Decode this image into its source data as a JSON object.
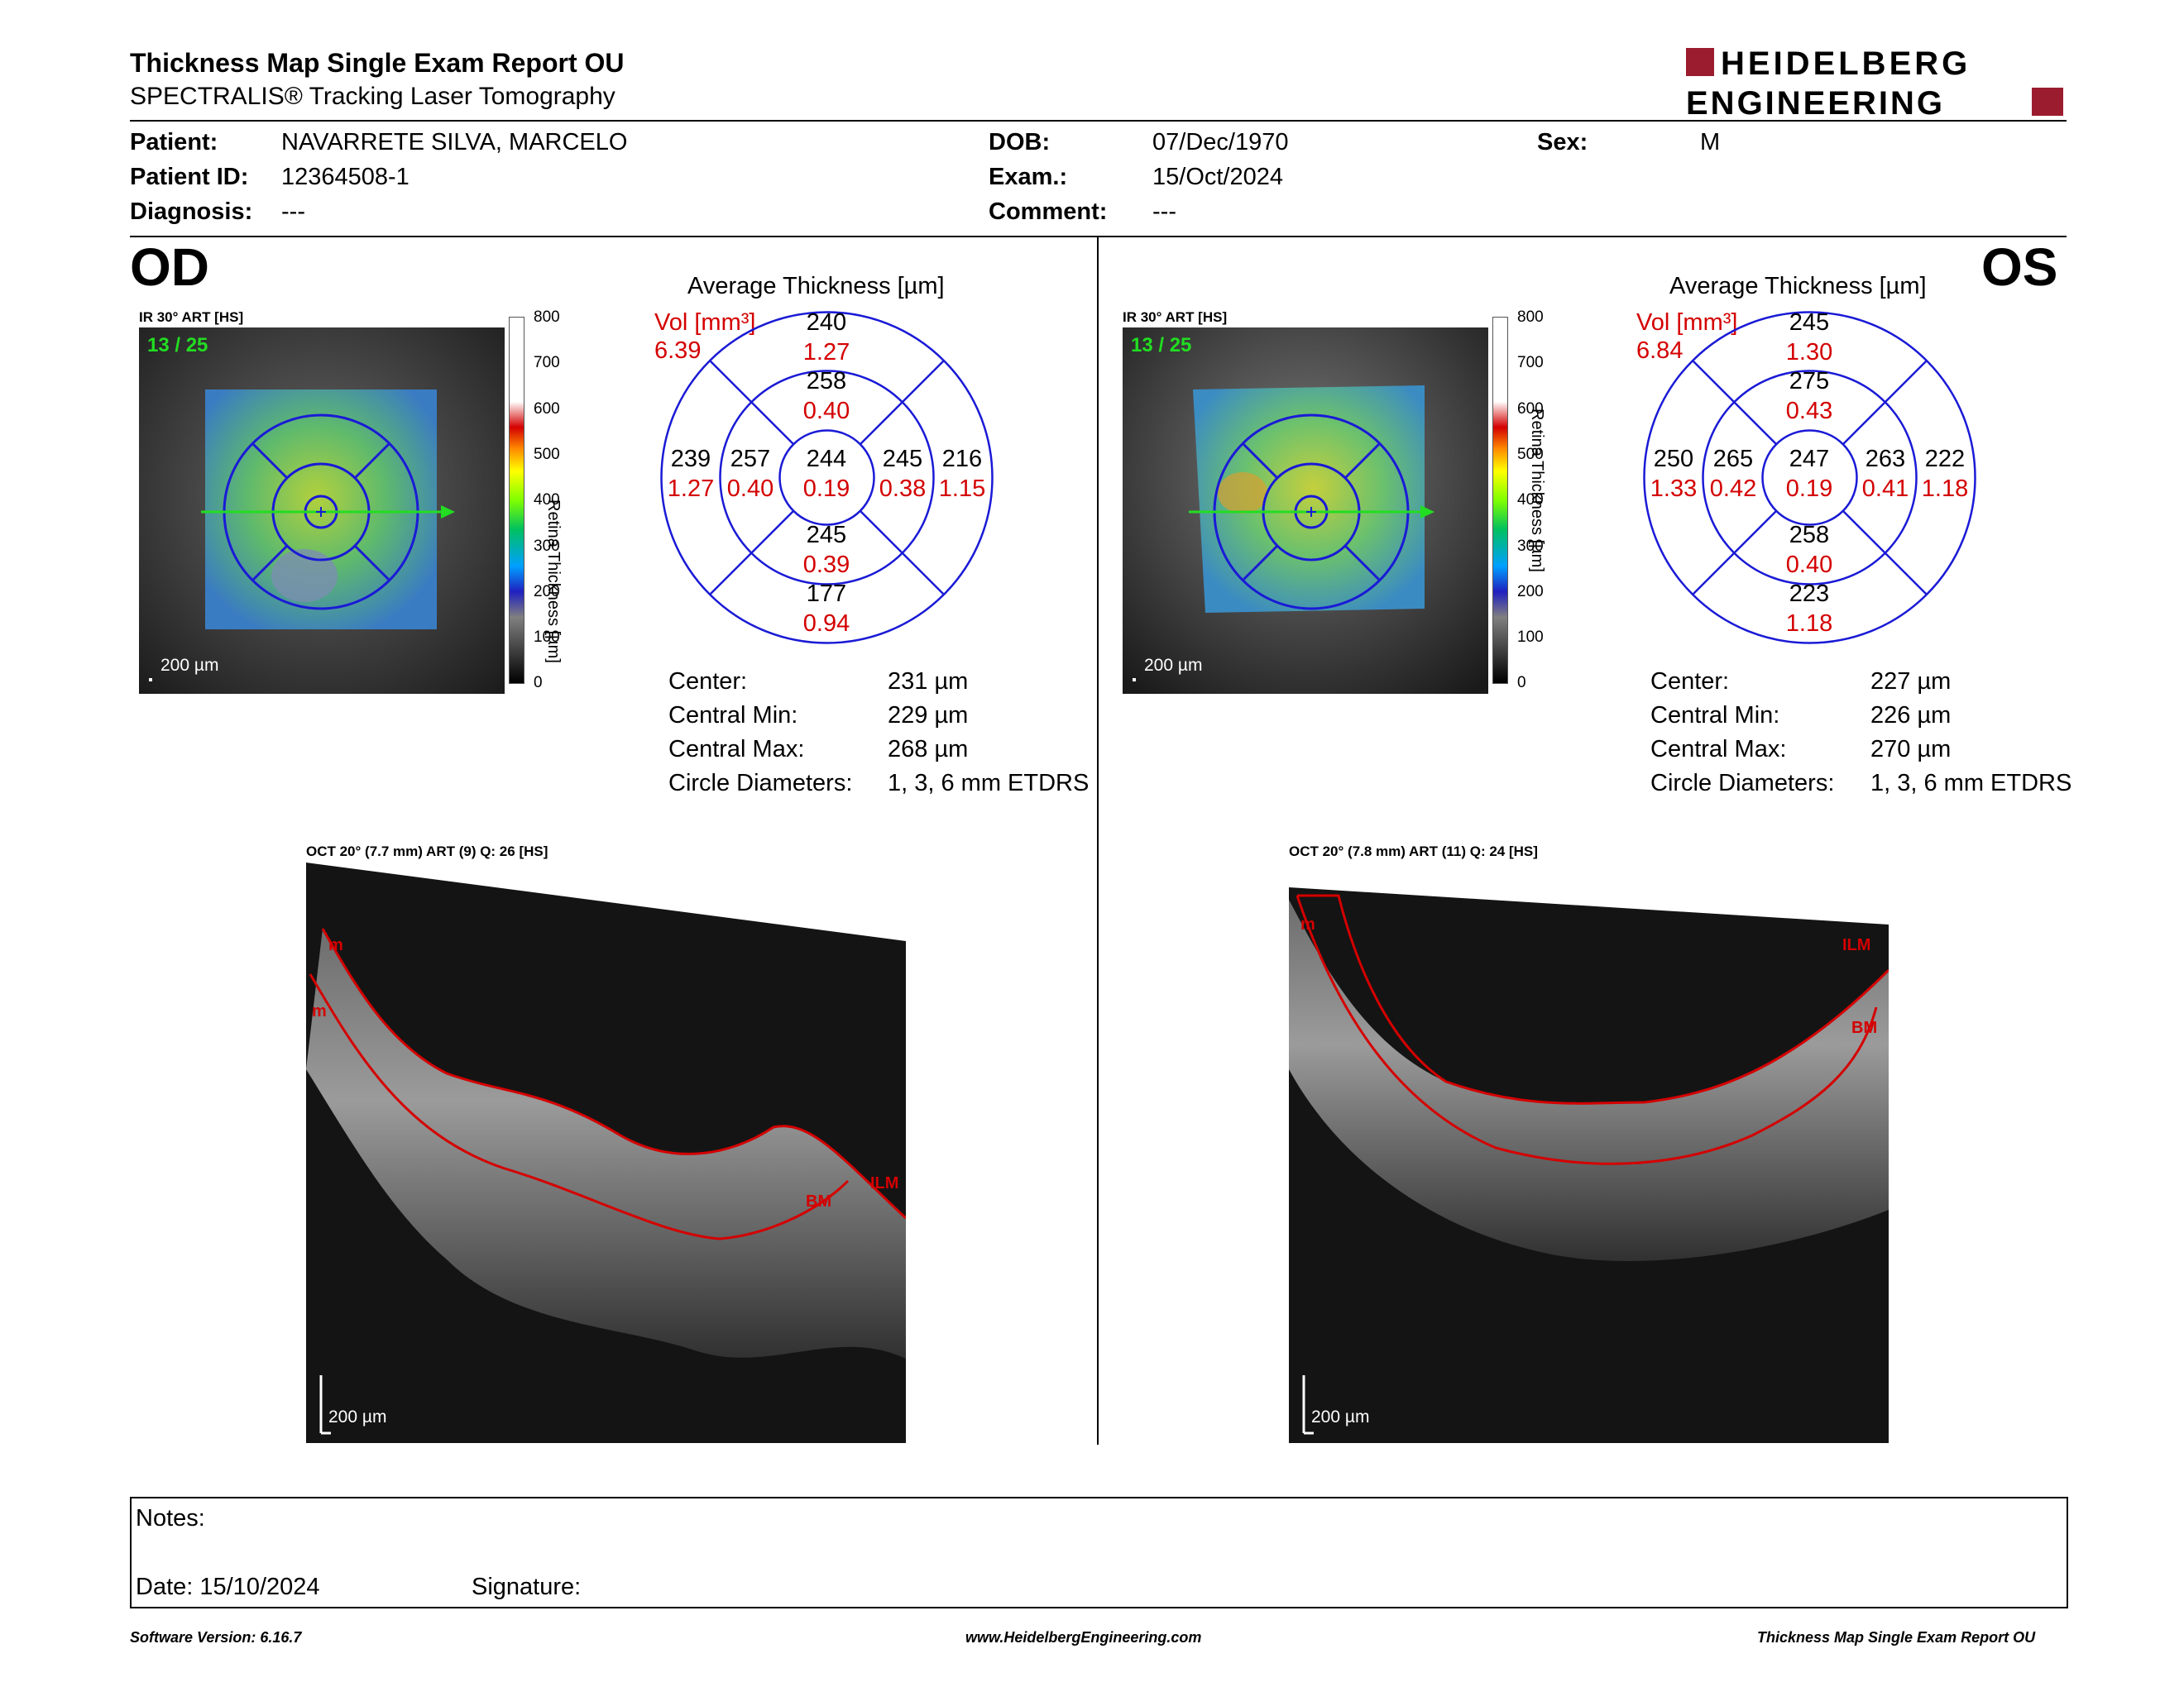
{
  "header": {
    "title": "Thickness Map Single Exam Report OU",
    "subtitle": "SPECTRALIS® Tracking Laser Tomography",
    "logo_line1": "HEIDELBERG",
    "logo_line2": "ENGINEERING"
  },
  "patient": {
    "patient_label": "Patient:",
    "patient_value": "NAVARRETE SILVA, MARCELO",
    "id_label": "Patient ID:",
    "id_value": "12364508-1",
    "diagnosis_label": "Diagnosis:",
    "diagnosis_value": "---",
    "dob_label": "DOB:",
    "dob_value": "07/Dec/1970",
    "exam_label": "Exam.:",
    "exam_value": "15/Oct/2024",
    "comment_label": "Comment:",
    "comment_value": "---",
    "sex_label": "Sex:",
    "sex_value": "M"
  },
  "od": {
    "eye": "OD",
    "ir_label": "IR 30° ART [HS]",
    "frame": "13 / 25",
    "scale": "200 µm",
    "colorbar_ticks": [
      "800",
      "700",
      "600",
      "500",
      "400",
      "300",
      "200",
      "100",
      "0"
    ],
    "colorbar_label": "Retina  Thickness [µm]",
    "avg_title": "Average Thickness [µm]",
    "vol_label": "Vol [mm³]",
    "vol_value": "6.39",
    "grid": {
      "center": {
        "t": "244",
        "v": "0.19"
      },
      "inner_top": {
        "t": "258",
        "v": "0.40"
      },
      "inner_bottom": {
        "t": "245",
        "v": "0.39"
      },
      "inner_left": {
        "t": "257",
        "v": "0.40"
      },
      "inner_right": {
        "t": "245",
        "v": "0.38"
      },
      "outer_top": {
        "t": "240",
        "v": "1.27"
      },
      "outer_bottom": {
        "t": "177",
        "v": "0.94"
      },
      "outer_left": {
        "t": "239",
        "v": "1.27"
      },
      "outer_right": {
        "t": "216",
        "v": "1.15"
      }
    },
    "stats": [
      {
        "label": "Center:",
        "value": "231 µm"
      },
      {
        "label": "Central Min:",
        "value": "229 µm"
      },
      {
        "label": "Central Max:",
        "value": "268 µm"
      },
      {
        "label": "Circle Diameters:",
        "value": "1, 3, 6 mm ETDRS"
      }
    ],
    "oct_label": "OCT 20° (7.7 mm) ART (9) Q: 26 [HS]",
    "oct_scale": "200 µm",
    "oct_markers": [
      "m",
      "m",
      "ILM",
      "BM"
    ]
  },
  "os": {
    "eye": "OS",
    "ir_label": "IR 30° ART [HS]",
    "frame": "13 / 25",
    "scale": "200 µm",
    "colorbar_ticks": [
      "800",
      "700",
      "600",
      "500",
      "400",
      "300",
      "200",
      "100",
      "0"
    ],
    "colorbar_label": "Retina  Thickness [µm]",
    "avg_title": "Average Thickness [µm]",
    "vol_label": "Vol [mm³]",
    "vol_value": "6.84",
    "grid": {
      "center": {
        "t": "247",
        "v": "0.19"
      },
      "inner_top": {
        "t": "275",
        "v": "0.43"
      },
      "inner_bottom": {
        "t": "258",
        "v": "0.40"
      },
      "inner_left": {
        "t": "265",
        "v": "0.42"
      },
      "inner_right": {
        "t": "263",
        "v": "0.41"
      },
      "outer_top": {
        "t": "245",
        "v": "1.30"
      },
      "outer_bottom": {
        "t": "223",
        "v": "1.18"
      },
      "outer_left": {
        "t": "250",
        "v": "1.33"
      },
      "outer_right": {
        "t": "222",
        "v": "1.18"
      }
    },
    "stats": [
      {
        "label": "Center:",
        "value": "227 µm"
      },
      {
        "label": "Central Min:",
        "value": "226 µm"
      },
      {
        "label": "Central Max:",
        "value": "270 µm"
      },
      {
        "label": "Circle Diameters:",
        "value": "1, 3, 6 mm ETDRS"
      }
    ],
    "oct_label": "OCT 20° (7.8 mm) ART (11) Q: 24 [HS]",
    "oct_scale": "200 µm",
    "oct_markers": [
      "m",
      "ILM",
      "BM"
    ]
  },
  "notes": {
    "notes_label": "Notes:",
    "date_label": "Date: 15/10/2024",
    "signature_label": "Signature:"
  },
  "footer": {
    "version": "Software Version: 6.16.7",
    "url": "www.HeidelbergEngineering.com",
    "report": "Thickness Map Single Exam Report OU"
  },
  "colors": {
    "brand": "#9b1c2e",
    "values_red": "#d40000",
    "grid_blue": "#1a1ad6",
    "scan_green": "#22dd22"
  }
}
